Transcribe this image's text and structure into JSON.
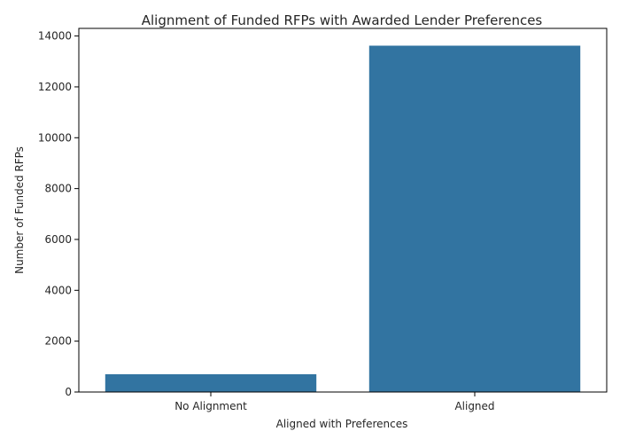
{
  "chart_data": {
    "type": "bar",
    "title": "Alignment of Funded RFPs with Awarded Lender Preferences",
    "xlabel": "Aligned with Preferences",
    "ylabel": "Number of Funded RFPs",
    "categories": [
      "No Alignment",
      "Aligned"
    ],
    "values": [
      700,
      13620
    ],
    "ylim": [
      0,
      14300
    ],
    "yticks": [
      0,
      2000,
      4000,
      6000,
      8000,
      10000,
      12000,
      14000
    ],
    "bar_color": "#3274a1",
    "grid": false,
    "legend": false
  }
}
